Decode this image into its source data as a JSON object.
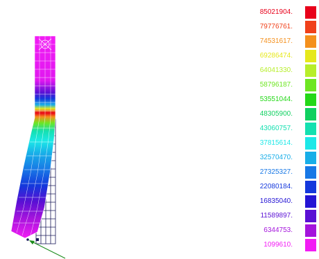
{
  "legend": {
    "entries": [
      {
        "label": "85021904.",
        "color": "#e8001a"
      },
      {
        "label": "79776761.",
        "color": "#f0401a"
      },
      {
        "label": "74531617.",
        "color": "#f4901c"
      },
      {
        "label": "69286474.",
        "color": "#e6e81c"
      },
      {
        "label": "64041330.",
        "color": "#b7ee2a"
      },
      {
        "label": "58796187.",
        "color": "#6ee622"
      },
      {
        "label": "53551044.",
        "color": "#24d818"
      },
      {
        "label": "48305900.",
        "color": "#10d060"
      },
      {
        "label": "43060757.",
        "color": "#14e0b0"
      },
      {
        "label": "37815614.",
        "color": "#1ce8e8"
      },
      {
        "label": "32570470.",
        "color": "#18aee8"
      },
      {
        "label": "27325327.",
        "color": "#1878e6"
      },
      {
        "label": "22080184.",
        "color": "#1438dc"
      },
      {
        "label": "16835040.",
        "color": "#2414d4"
      },
      {
        "label": "11589897.",
        "color": "#5a10d4"
      },
      {
        "label": "6344753.",
        "color": "#a414dc"
      },
      {
        "label": "1099610.",
        "color": "#f21cf4"
      }
    ]
  },
  "model": {
    "icons": [
      "constraint-symbol-icon",
      "load-arrow-icon"
    ]
  }
}
